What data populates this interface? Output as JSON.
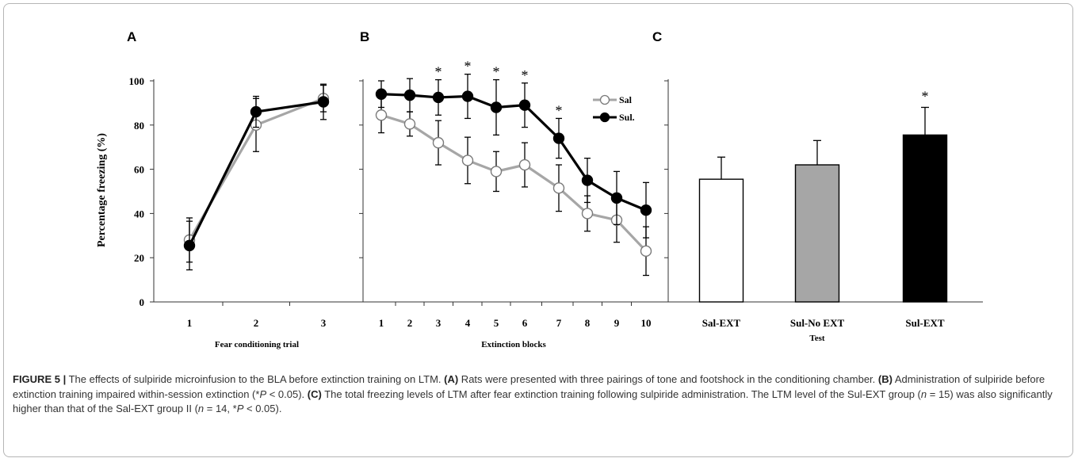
{
  "chart_data": [
    {
      "type": "line",
      "panel": "A",
      "xlabel": "Fear conditioning trial",
      "ylabel": "Percentage freezing (%)",
      "ylim": [
        0,
        100
      ],
      "yticks": [
        "0",
        "20",
        "40",
        "60",
        "80",
        "100"
      ],
      "categories": [
        "1",
        "2",
        "3"
      ],
      "series": [
        {
          "name": "Sal",
          "values": [
            28,
            80,
            92
          ],
          "err": [
            10,
            12,
            6
          ],
          "color": "#a6a6a6",
          "marker": "open"
        },
        {
          "name": "Sul.",
          "values": [
            25.5,
            86,
            90.5
          ],
          "err": [
            11,
            7,
            8
          ],
          "color": "#000000",
          "marker": "filled"
        }
      ]
    },
    {
      "type": "line",
      "panel": "B",
      "xlabel": "Extinction blocks",
      "ylim": [
        0,
        100
      ],
      "categories": [
        "1",
        "2",
        "3",
        "4",
        "5",
        "6",
        "7",
        "8",
        "9",
        "10"
      ],
      "series": [
        {
          "name": "Sal",
          "values": [
            84.5,
            80.5,
            72,
            64,
            59,
            62,
            51.5,
            40,
            37,
            23
          ],
          "err": [
            8,
            5.5,
            10,
            10.5,
            9,
            10,
            10.5,
            8,
            10,
            11
          ],
          "color": "#a6a6a6",
          "marker": "open"
        },
        {
          "name": "Sul.",
          "values": [
            94,
            93.5,
            92.5,
            93,
            88,
            89,
            74,
            55,
            47,
            41.5
          ],
          "err": [
            6,
            7.5,
            8,
            10,
            12.5,
            10,
            9,
            10,
            12,
            12.5
          ],
          "color": "#000000",
          "marker": "filled"
        }
      ],
      "significance_marks": {
        "categories": [
          "3",
          "4",
          "5",
          "6",
          "7"
        ],
        "symbol": "*"
      },
      "legend": {
        "placement": "top-right"
      }
    },
    {
      "type": "bar",
      "panel": "C",
      "xlabel": "Test",
      "ylim": [
        0,
        100
      ],
      "categories": [
        "Sal-EXT",
        "Sul-No EXT",
        "Sul-EXT"
      ],
      "values": [
        55.5,
        62,
        75.5
      ],
      "err": [
        10,
        11,
        12.5
      ],
      "colors": [
        "#ffffff",
        "#a6a6a6",
        "#000000"
      ],
      "significance_marks": {
        "categories": [
          "Sul-EXT"
        ],
        "symbol": "*"
      }
    }
  ],
  "figure_label": "FIGURE 5 |",
  "caption_parts": [
    {
      "text": "FIGURE 5 |",
      "style": "b"
    },
    {
      "text": " The effects of sulpiride microinfusion to the BLA before extinction training on LTM. "
    },
    {
      "text": "(A)",
      "style": "b"
    },
    {
      "text": " Rats were presented with three pairings of tone and footshock in the conditioning chamber. "
    },
    {
      "text": "(B)",
      "style": "b"
    },
    {
      "text": " Administration of sulpiride before extinction training impaired within-session extinction (*"
    },
    {
      "text": "P",
      "style": "i"
    },
    {
      "text": " < 0.05). "
    },
    {
      "text": "(C)",
      "style": "b"
    },
    {
      "text": " The total freezing levels of LTM after fear extinction training following sulpiride administration. The LTM level of the Sul-EXT group ("
    },
    {
      "text": "n",
      "style": "i"
    },
    {
      "text": " = 15) was also significantly higher than that of the Sal-EXT group II ("
    },
    {
      "text": "n",
      "style": "i"
    },
    {
      "text": " = 14, *"
    },
    {
      "text": "P",
      "style": "i"
    },
    {
      "text": " < 0.05)."
    }
  ]
}
